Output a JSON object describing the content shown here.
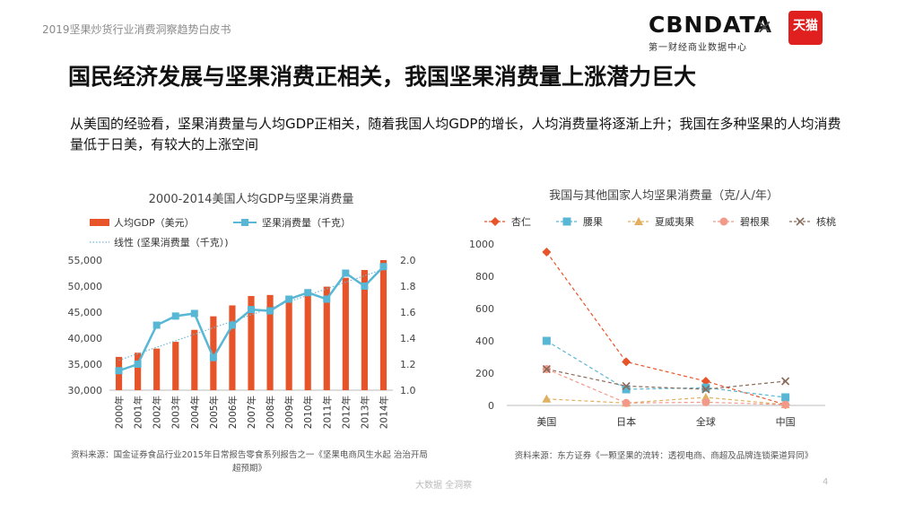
{
  "header": {
    "report_title": "2019坚果炒货行业消费洞察趋势白皮书"
  },
  "logo": {
    "brand": "CBNDATA",
    "sub": "第一财经商业数据中心",
    "separator": "×",
    "partner": "天猫"
  },
  "slide": {
    "title": "国民经济发展与坚果消费正相关，我国坚果消费量上涨潜力巨大",
    "body": "从美国的经验看，坚果消费量与人均GDP正相关，随着我国人均GDP的增长，人均消费量将逐渐上升；我国在多种坚果的人均消费量低于日美，有较大的上涨空间"
  },
  "sources": {
    "left": "资料来源：国金证券食品行业2015年日常报告零食系列报告之一《坚果电商风生水起 治治开局超预期》",
    "right": "资料来源：东方证券《一颗坚果的流转：透视电商、商超及品牌连锁渠道异同》"
  },
  "footer": {
    "text": "大数据 全洞察",
    "page": "4"
  },
  "colors": {
    "bar": "#e8542a",
    "line": "#58b7d4",
    "trend": "#6fb8d6"
  },
  "chart_data": [
    {
      "type": "bar",
      "title": "2000-2014美国人均GDP与坚果消费量",
      "categories": [
        "2000年",
        "2001年",
        "2002年",
        "2003年",
        "2004年",
        "2005年",
        "2006年",
        "2007年",
        "2008年",
        "2009年",
        "2010年",
        "2011年",
        "2012年",
        "2013年",
        "2014年"
      ],
      "series": [
        {
          "name": "人均GDP（美元）",
          "type": "bar",
          "axis": "left",
          "values": [
            36400,
            37200,
            38000,
            39300,
            41600,
            44200,
            46300,
            48100,
            48300,
            47000,
            48500,
            49900,
            51600,
            53100,
            55000
          ]
        },
        {
          "name": "坚果消费量（千克）",
          "type": "line",
          "axis": "right",
          "values": [
            1.15,
            1.2,
            1.5,
            1.57,
            1.59,
            1.25,
            1.5,
            1.62,
            1.61,
            1.7,
            1.75,
            1.7,
            1.9,
            1.8,
            1.95
          ]
        },
        {
          "name": "线性 (坚果消费量（千克）)",
          "type": "trend",
          "axis": "right",
          "values": [
            1.23,
            1.28,
            1.33,
            1.38,
            1.43,
            1.48,
            1.53,
            1.58,
            1.63,
            1.68,
            1.73,
            1.78,
            1.83,
            1.88,
            1.93
          ]
        }
      ],
      "ylim_left": [
        30000,
        55000
      ],
      "yticks_left": [
        "55,000",
        "50,000",
        "45,000",
        "40,000",
        "35,000",
        "30,000"
      ],
      "ylim_right": [
        1.0,
        2.0
      ],
      "yticks_right": [
        "2.0",
        "1.8",
        "1.6",
        "1.4",
        "1.2",
        "1.0"
      ],
      "legend": "top"
    },
    {
      "type": "line",
      "title": "我国与其他国家人均坚果消费量（克/人/年）",
      "categories": [
        "美国",
        "日本",
        "全球",
        "中国"
      ],
      "series": [
        {
          "name": "杏仁",
          "color": "#e8542a",
          "marker": "diamond",
          "values": [
            950,
            270,
            150,
            5
          ]
        },
        {
          "name": "腰果",
          "color": "#58b7d4",
          "marker": "square",
          "values": [
            400,
            100,
            110,
            50
          ]
        },
        {
          "name": "夏威夷果",
          "color": "#e0b060",
          "marker": "triangle",
          "values": [
            40,
            15,
            50,
            5
          ]
        },
        {
          "name": "碧根果",
          "color": "#f29a8a",
          "marker": "circle",
          "values": [
            225,
            15,
            20,
            5
          ]
        },
        {
          "name": "核桃",
          "color": "#8a6a5a",
          "marker": "x",
          "values": [
            225,
            120,
            100,
            150
          ]
        }
      ],
      "ylim": [
        0,
        1000
      ],
      "yticks": [
        "1000",
        "800",
        "600",
        "400",
        "200",
        "0"
      ],
      "legend": "top"
    }
  ]
}
